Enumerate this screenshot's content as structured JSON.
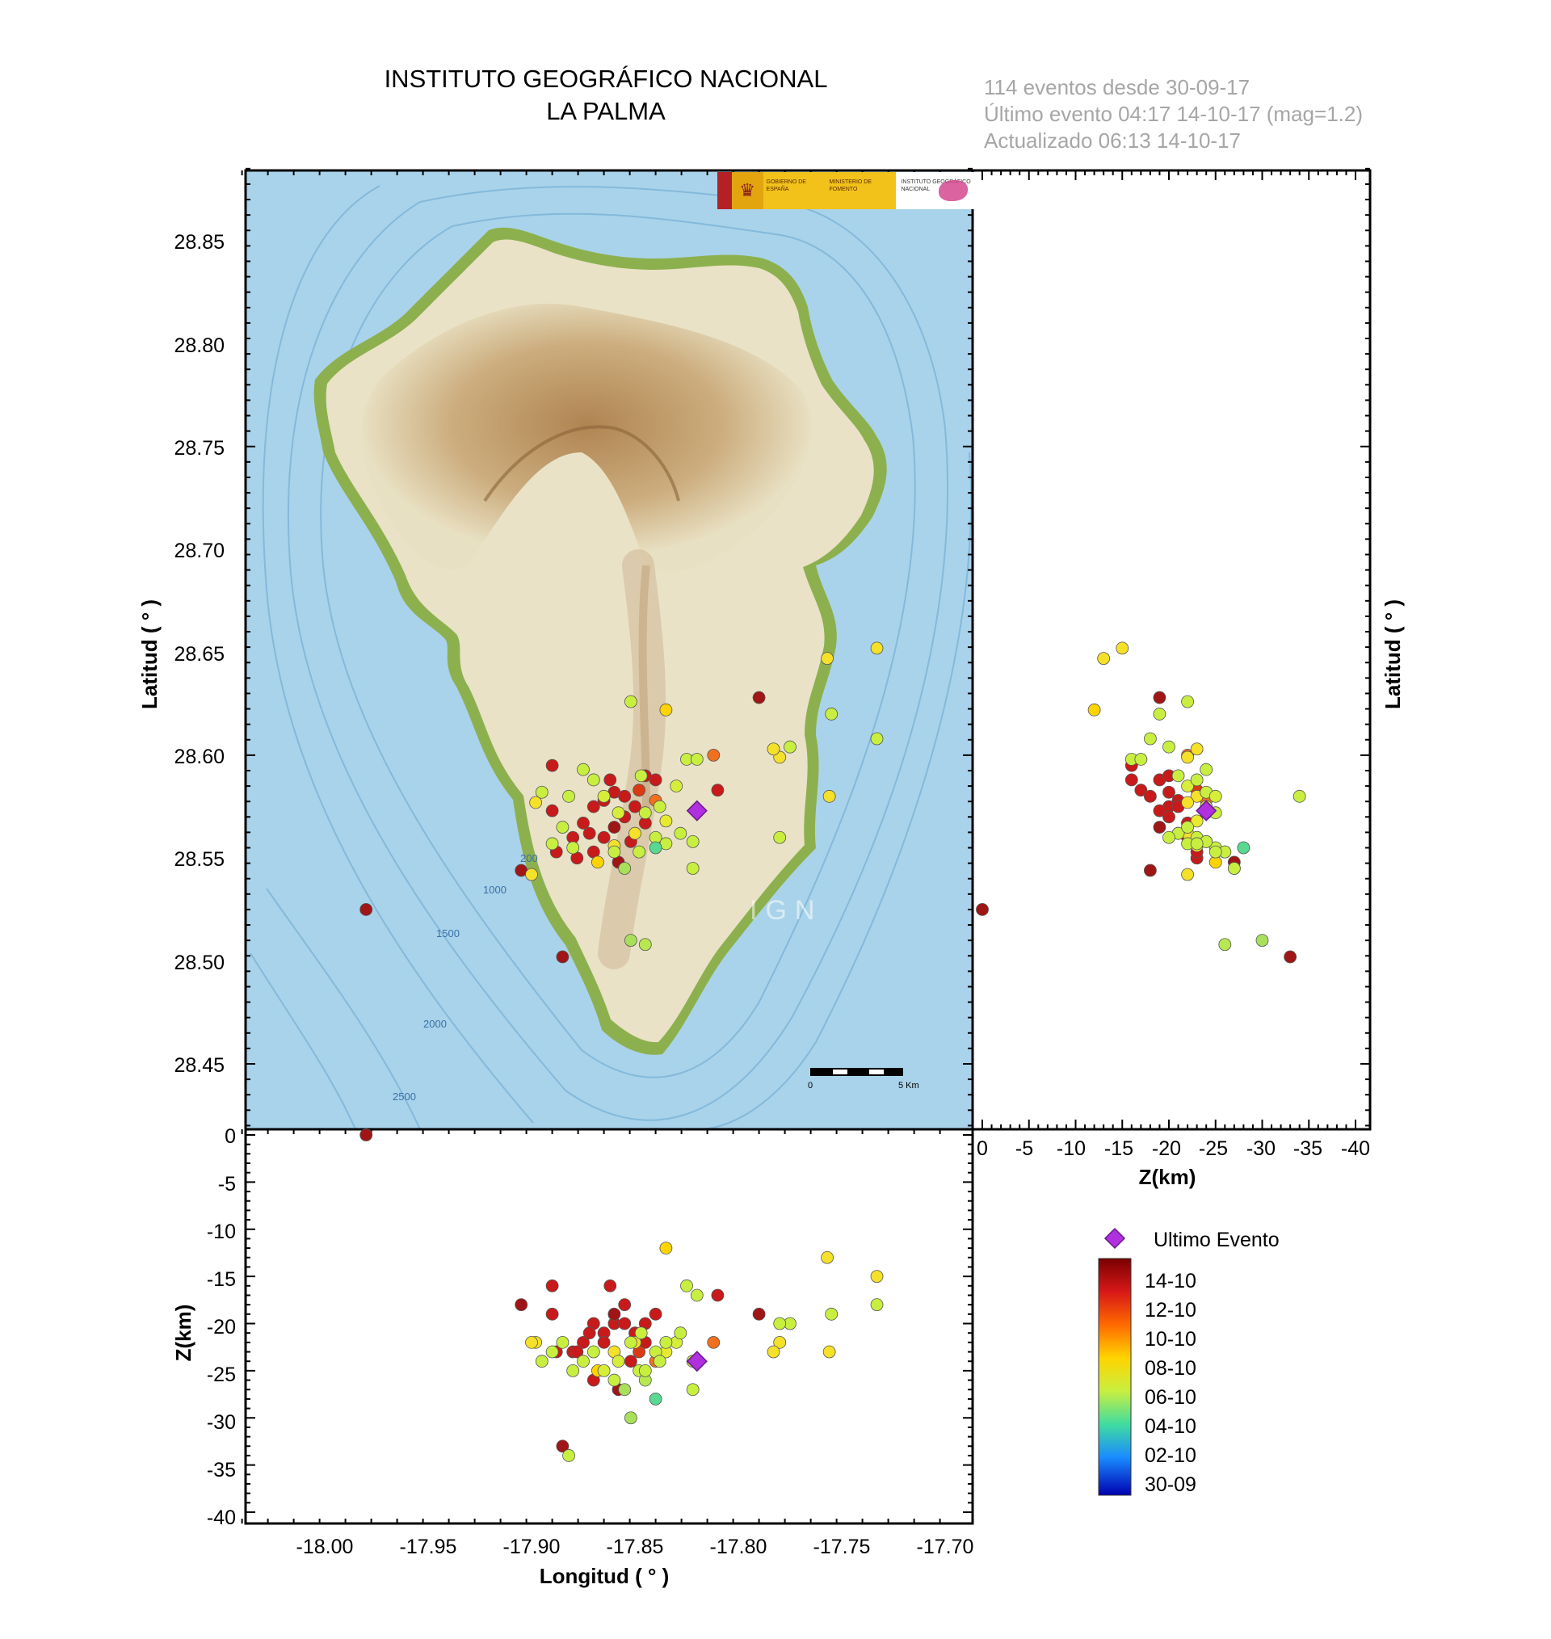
{
  "header": {
    "title_line1": "INSTITUTO GEOGRÁFICO NACIONAL",
    "title_line2": "LA PALMA"
  },
  "info": {
    "line1": "114 eventos desde 30-09-17",
    "line2": "Último evento 04:17 14-10-17   (mag=1.2)",
    "line3": "Actualizado   06:13  14-10-17"
  },
  "logos": {
    "gobierno": "GOBIERNO DE ESPAÑA",
    "ministerio": "MINISTERIO DE FOMENTO",
    "ign": "INSTITUTO GEOGRÁFICO NACIONAL"
  },
  "map": {
    "watermark": "IGN",
    "scale_start": "0",
    "scale_end": "5 Km",
    "bathymetry_labels": [
      "200",
      "1000",
      "1500",
      "2000",
      "2500"
    ],
    "colors": {
      "sea": "#a9d3ea",
      "land": "#e9e0c4",
      "relief": "#b88a55",
      "coast": "#8db04e"
    }
  },
  "axes": {
    "latitud_label": "Latitud ( ° )",
    "longitud_label": "Longitud ( ° )",
    "z_label": "Z(km)",
    "lat_ticks": [
      "28.85",
      "28.80",
      "28.75",
      "28.70",
      "28.65",
      "28.60",
      "28.55",
      "28.50",
      "28.45"
    ],
    "lon_ticks": [
      "-18.00",
      "-17.95",
      "-17.90",
      "-17.85",
      "-17.80",
      "-17.75",
      "-17.70"
    ],
    "z_ticks_vertical": [
      "0",
      "-5",
      "-10",
      "-15",
      "-20",
      "-25",
      "-30",
      "-35",
      "-40"
    ],
    "z_ticks_horizontal": [
      "0",
      "-5",
      "-10",
      "-15",
      "-20",
      "-25",
      "-30",
      "-35",
      "-40"
    ]
  },
  "legend": {
    "last_event_label": "Ultimo Evento",
    "scale_labels": [
      "14-10",
      "12-10",
      "10-10",
      "08-10",
      "06-10",
      "04-10",
      "02-10",
      "30-09"
    ],
    "colors": [
      "#7a0000",
      "#d71818",
      "#ff6a00",
      "#ffd400",
      "#c8ef40",
      "#40dca0",
      "#1a8cff",
      "#0000b0"
    ],
    "marker_color": "#b030e0"
  },
  "chart_data": {
    "type": "scatter",
    "title": "INSTITUTO GEOGRÁFICO NACIONAL LA PALMA",
    "xlabel": "Longitud ( ° )",
    "ylabel": "Latitud ( ° )",
    "zlabel": "Z(km)",
    "xlim": [
      -18.04,
      -17.69
    ],
    "ylim": [
      28.42,
      28.885
    ],
    "zlim": [
      -40,
      0
    ],
    "count": 114,
    "last_event": {
      "lon": -17.82,
      "lat": 28.573,
      "depth": -24,
      "date": "14-10-17",
      "mag": 1.2
    },
    "series": [
      {
        "name": "Eventos",
        "points": [
          {
            "lon": -17.98,
            "lat": 28.525,
            "depth": 0,
            "c": "#a01515"
          },
          {
            "lon": -17.885,
            "lat": 28.502,
            "depth": -33,
            "c": "#a01515"
          },
          {
            "lon": -17.79,
            "lat": 28.628,
            "depth": -19,
            "c": "#a01515"
          },
          {
            "lon": -17.905,
            "lat": 28.544,
            "depth": -18,
            "c": "#a01515"
          },
          {
            "lon": -17.89,
            "lat": 28.595,
            "depth": -16,
            "c": "#c81a1a"
          },
          {
            "lon": -17.81,
            "lat": 28.583,
            "depth": -17,
            "c": "#c81a1a"
          },
          {
            "lon": -17.84,
            "lat": 28.588,
            "depth": -19,
            "c": "#c81a1a"
          },
          {
            "lon": -17.845,
            "lat": 28.59,
            "depth": -20,
            "c": "#c81a1a"
          },
          {
            "lon": -17.86,
            "lat": 28.582,
            "depth": -20,
            "c": "#c81a1a"
          },
          {
            "lon": -17.865,
            "lat": 28.578,
            "depth": -21,
            "c": "#c81a1a"
          },
          {
            "lon": -17.87,
            "lat": 28.575,
            "depth": -20,
            "c": "#c81a1a"
          },
          {
            "lon": -17.875,
            "lat": 28.567,
            "depth": -22,
            "c": "#c81a1a"
          },
          {
            "lon": -17.88,
            "lat": 28.56,
            "depth": -23,
            "c": "#c81a1a"
          },
          {
            "lon": -17.878,
            "lat": 28.55,
            "depth": -23,
            "c": "#c81a1a"
          },
          {
            "lon": -17.888,
            "lat": 28.553,
            "depth": -23,
            "c": "#c81a1a"
          },
          {
            "lon": -17.89,
            "lat": 28.573,
            "depth": -19,
            "c": "#c81a1a"
          },
          {
            "lon": -17.872,
            "lat": 28.562,
            "depth": -21,
            "c": "#c81a1a"
          },
          {
            "lon": -17.865,
            "lat": 28.56,
            "depth": -22,
            "c": "#c81a1a"
          },
          {
            "lon": -17.855,
            "lat": 28.57,
            "depth": -20,
            "c": "#c81a1a"
          },
          {
            "lon": -17.85,
            "lat": 28.575,
            "depth": -21,
            "c": "#c81a1a"
          },
          {
            "lon": -17.86,
            "lat": 28.565,
            "depth": -19,
            "c": "#a01515"
          },
          {
            "lon": -17.852,
            "lat": 28.558,
            "depth": -24,
            "c": "#c81a1a"
          },
          {
            "lon": -17.845,
            "lat": 28.567,
            "depth": -22,
            "c": "#c81a1a"
          },
          {
            "lon": -17.858,
            "lat": 28.548,
            "depth": -27,
            "c": "#a01515"
          },
          {
            "lon": -17.87,
            "lat": 28.553,
            "depth": -26,
            "c": "#c81a1a"
          },
          {
            "lon": -17.862,
            "lat": 28.588,
            "depth": -16,
            "c": "#c81a1a"
          },
          {
            "lon": -17.855,
            "lat": 28.58,
            "depth": -18,
            "c": "#c81a1a"
          },
          {
            "lon": -17.848,
            "lat": 28.583,
            "depth": -23,
            "c": "#d93a14"
          },
          {
            "lon": -17.84,
            "lat": 28.578,
            "depth": -24,
            "c": "#f07020"
          },
          {
            "lon": -17.812,
            "lat": 28.6,
            "depth": -22,
            "c": "#f07020"
          },
          {
            "lon": -17.868,
            "lat": 28.548,
            "depth": -25,
            "c": "#ffd400"
          },
          {
            "lon": -17.86,
            "lat": 28.556,
            "depth": -23,
            "c": "#f5e02a"
          },
          {
            "lon": -17.85,
            "lat": 28.562,
            "depth": -22,
            "c": "#f5e02a"
          },
          {
            "lon": -17.835,
            "lat": 28.568,
            "depth": -23,
            "c": "#e8ea30"
          },
          {
            "lon": -17.83,
            "lat": 28.585,
            "depth": -22,
            "c": "#d6ee3a"
          },
          {
            "lon": -17.835,
            "lat": 28.622,
            "depth": -12,
            "c": "#ffd400"
          },
          {
            "lon": -17.78,
            "lat": 28.599,
            "depth": -22,
            "c": "#f5e02a"
          },
          {
            "lon": -17.783,
            "lat": 28.603,
            "depth": -23,
            "c": "#f5e02a"
          },
          {
            "lon": -17.757,
            "lat": 28.647,
            "depth": -13,
            "c": "#f5e02a"
          },
          {
            "lon": -17.733,
            "lat": 28.652,
            "depth": -15,
            "c": "#f5e02a"
          },
          {
            "lon": -17.756,
            "lat": 28.58,
            "depth": -23,
            "c": "#f5e02a"
          },
          {
            "lon": -17.898,
            "lat": 28.577,
            "depth": -22,
            "c": "#f5e02a"
          },
          {
            "lon": -17.9,
            "lat": 28.542,
            "depth": -22,
            "c": "#f5e02a"
          },
          {
            "lon": -17.895,
            "lat": 28.582,
            "depth": -24,
            "c": "#c8ef40"
          },
          {
            "lon": -17.875,
            "lat": 28.593,
            "depth": -24,
            "c": "#c8ef40"
          },
          {
            "lon": -17.87,
            "lat": 28.588,
            "depth": -23,
            "c": "#c8ef40"
          },
          {
            "lon": -17.88,
            "lat": 28.555,
            "depth": -25,
            "c": "#c8ef40"
          },
          {
            "lon": -17.86,
            "lat": 28.553,
            "depth": -26,
            "c": "#c8ef40"
          },
          {
            "lon": -17.855,
            "lat": 28.545,
            "depth": -27,
            "c": "#a8e05a"
          },
          {
            "lon": -17.848,
            "lat": 28.553,
            "depth": -25,
            "c": "#c8ef40"
          },
          {
            "lon": -17.84,
            "lat": 28.56,
            "depth": -23,
            "c": "#c8ef40"
          },
          {
            "lon": -17.835,
            "lat": 28.557,
            "depth": -22,
            "c": "#c8ef40"
          },
          {
            "lon": -17.828,
            "lat": 28.562,
            "depth": -21,
            "c": "#c8ef40"
          },
          {
            "lon": -17.825,
            "lat": 28.598,
            "depth": -16,
            "c": "#c8ef40"
          },
          {
            "lon": -17.82,
            "lat": 28.598,
            "depth": -17,
            "c": "#c8ef40"
          },
          {
            "lon": -17.822,
            "lat": 28.545,
            "depth": -27,
            "c": "#c8ef40"
          },
          {
            "lon": -17.822,
            "lat": 28.558,
            "depth": -24,
            "c": "#c8ef40"
          },
          {
            "lon": -17.852,
            "lat": 28.626,
            "depth": -22,
            "c": "#c8ef40"
          },
          {
            "lon": -17.847,
            "lat": 28.59,
            "depth": -21,
            "c": "#c8ef40"
          },
          {
            "lon": -17.845,
            "lat": 28.508,
            "depth": -26,
            "c": "#b8e850"
          },
          {
            "lon": -17.852,
            "lat": 28.51,
            "depth": -30,
            "c": "#a8e05a"
          },
          {
            "lon": -17.84,
            "lat": 28.555,
            "depth": -28,
            "c": "#58d890"
          },
          {
            "lon": -17.755,
            "lat": 28.62,
            "depth": -19,
            "c": "#c8ef40"
          },
          {
            "lon": -17.733,
            "lat": 28.608,
            "depth": -18,
            "c": "#c8ef40"
          },
          {
            "lon": -17.775,
            "lat": 28.604,
            "depth": -20,
            "c": "#c8ef40"
          },
          {
            "lon": -17.78,
            "lat": 28.56,
            "depth": -20,
            "c": "#c8ef40"
          },
          {
            "lon": -17.89,
            "lat": 28.557,
            "depth": -23,
            "c": "#c8ef40"
          },
          {
            "lon": -17.885,
            "lat": 28.565,
            "depth": -22,
            "c": "#c8ef40"
          },
          {
            "lon": -17.882,
            "lat": 28.58,
            "depth": -34,
            "c": "#c8ef40"
          },
          {
            "lon": -17.865,
            "lat": 28.58,
            "depth": -25,
            "c": "#d6ee3a"
          },
          {
            "lon": -17.858,
            "lat": 28.572,
            "depth": -24,
            "c": "#d6ee3a"
          },
          {
            "lon": -17.845,
            "lat": 28.572,
            "depth": -25,
            "c": "#c8ef40"
          },
          {
            "lon": -17.838,
            "lat": 28.575,
            "depth": -24,
            "c": "#c8ef40"
          }
        ]
      }
    ]
  }
}
